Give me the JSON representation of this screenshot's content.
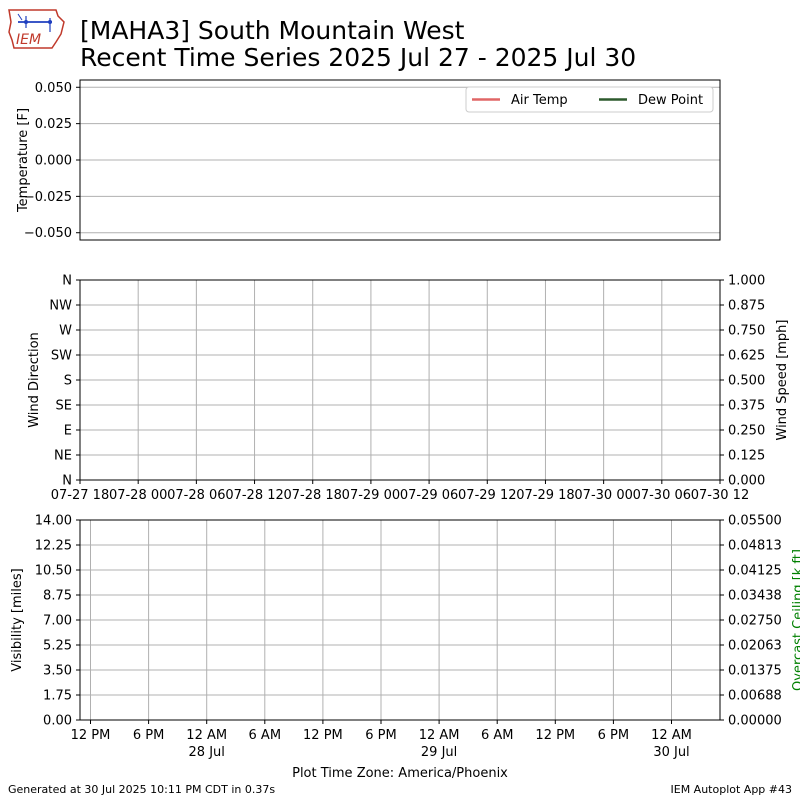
{
  "header": {
    "title_line1": "[MAHA3] South Mountain West",
    "title_line2": "Recent Time Series 2025 Jul 27 - 2025 Jul 30",
    "logo_text": "IEM"
  },
  "footer": {
    "generated": "Generated at 30 Jul 2025 10:11 PM CDT in 0.37s",
    "app": "IEM Autoplot App #43"
  },
  "chart_data": [
    {
      "type": "line",
      "ylabel": "Temperature [F]",
      "yticks": [
        "0.050",
        "0.025",
        "0.000",
        "−0.025",
        "−0.050"
      ],
      "ylim": [
        -0.055,
        0.055
      ],
      "grid": true,
      "legend": "top-right",
      "series": [
        {
          "name": "Air Temp",
          "color": "#e06666",
          "values": []
        },
        {
          "name": "Dew Point",
          "color": "#2d5a2d",
          "values": []
        }
      ]
    },
    {
      "type": "scatter",
      "ylabel": "Wind Direction",
      "yticks": [
        "N",
        "NW",
        "W",
        "SW",
        "S",
        "SE",
        "E",
        "NE",
        "N"
      ],
      "ylabel_right": "Wind Speed [mph]",
      "yticks_right": [
        "1.000",
        "0.875",
        "0.750",
        "0.625",
        "0.500",
        "0.375",
        "0.250",
        "0.125",
        "0.000"
      ],
      "ylim_right": [
        0,
        1
      ],
      "xticks": [
        "07-27 18",
        "07-28 00",
        "07-28 06",
        "07-28 12",
        "07-28 18",
        "07-29 00",
        "07-29 06",
        "07-29 12",
        "07-29 18",
        "07-30 00",
        "07-30 06",
        "07-30 12"
      ],
      "grid": true,
      "series": []
    },
    {
      "type": "line",
      "ylabel": "Visibility [miles]",
      "yticks": [
        "14.00",
        "12.25",
        "10.50",
        "8.75",
        "7.00",
        "5.25",
        "3.50",
        "1.75",
        "0.00"
      ],
      "ylim": [
        0,
        14
      ],
      "ylabel_right": "Overcast Ceiling [k ft]",
      "ylabel_right_color": "#008000",
      "yticks_right": [
        "0.05500",
        "0.04813",
        "0.04125",
        "0.03438",
        "0.02750",
        "0.02063",
        "0.01375",
        "0.00688",
        "0.00000"
      ],
      "ylim_right": [
        0,
        0.055
      ],
      "xticks": [
        {
          "label": "12 PM",
          "sub": ""
        },
        {
          "label": "6 PM",
          "sub": ""
        },
        {
          "label": "12 AM",
          "sub": "28 Jul"
        },
        {
          "label": "6 AM",
          "sub": ""
        },
        {
          "label": "12 PM",
          "sub": ""
        },
        {
          "label": "6 PM",
          "sub": ""
        },
        {
          "label": "12 AM",
          "sub": "29 Jul"
        },
        {
          "label": "6 AM",
          "sub": ""
        },
        {
          "label": "12 PM",
          "sub": ""
        },
        {
          "label": "6 PM",
          "sub": ""
        },
        {
          "label": "12 AM",
          "sub": "30 Jul"
        }
      ],
      "xlabel": "Plot Time Zone: America/Phoenix",
      "grid": true,
      "series": []
    }
  ]
}
